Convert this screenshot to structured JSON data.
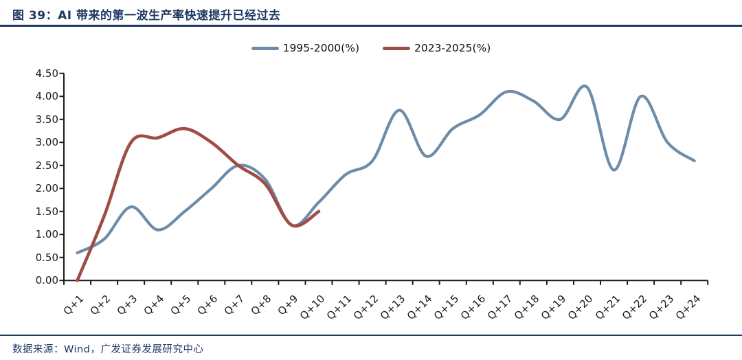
{
  "title": "图 39：AI 带来的第一波生产率快速提升已经过去",
  "footer": {
    "source": "数据来源：Wind，广发证券发展研究中心"
  },
  "colors": {
    "navy": "#1f3864",
    "blue_line": "#6d8caa",
    "red_line": "#a04c46",
    "axis": "#1a1a1a"
  },
  "chart_data": {
    "type": "line",
    "smooth": true,
    "grid": false,
    "legend_position": "top-center",
    "title": "",
    "xlabel": "",
    "ylabel": "",
    "ylim": [
      0,
      4.5
    ],
    "ytick_step": 0.5,
    "ytick_labels": [
      "0.00",
      "0.50",
      "1.00",
      "1.50",
      "2.00",
      "2.50",
      "3.00",
      "3.50",
      "4.00",
      "4.50"
    ],
    "categories": [
      "Q+1",
      "Q+2",
      "Q+3",
      "Q+4",
      "Q+5",
      "Q+6",
      "Q+7",
      "Q+8",
      "Q+9",
      "Q+10",
      "Q+11",
      "Q+12",
      "Q+13",
      "Q+14",
      "Q+15",
      "Q+16",
      "Q+17",
      "Q+18",
      "Q+19",
      "Q+20",
      "Q+21",
      "Q+22",
      "Q+23",
      "Q+24"
    ],
    "series": [
      {
        "name": "1995-2000(%)",
        "color_key": "blue_line",
        "values": [
          0.6,
          0.9,
          1.6,
          1.1,
          1.5,
          2.0,
          2.5,
          2.2,
          1.2,
          1.7,
          2.3,
          2.6,
          3.7,
          2.7,
          3.3,
          3.6,
          4.1,
          3.9,
          3.5,
          4.2,
          2.4,
          4.0,
          3.0,
          2.6
        ]
      },
      {
        "name": "2023-2025(%)",
        "color_key": "red_line",
        "values": [
          0.0,
          1.4,
          3.0,
          3.1,
          3.3,
          3.0,
          2.5,
          2.1,
          1.2,
          1.5
        ]
      }
    ]
  }
}
